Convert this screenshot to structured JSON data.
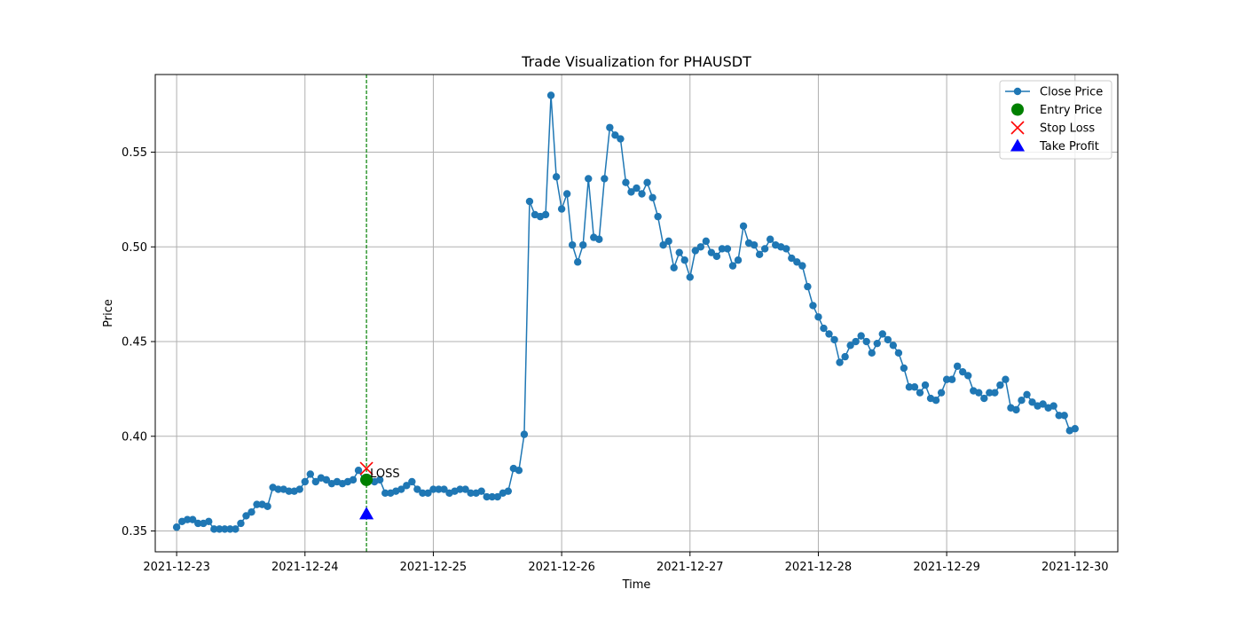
{
  "chart_data": {
    "type": "line",
    "title": "Trade Visualization for PHAUSDT",
    "xlabel": "Time",
    "ylabel": "Price",
    "xlim": [
      "2021-12-22T20:00",
      "2021-12-30T08:00"
    ],
    "ylim": [
      0.339,
      0.591
    ],
    "x_ticks": [
      "2021-12-23",
      "2021-12-24",
      "2021-12-25",
      "2021-12-26",
      "2021-12-27",
      "2021-12-28",
      "2021-12-29",
      "2021-12-30"
    ],
    "y_ticks": [
      0.35,
      0.4,
      0.45,
      0.5,
      0.55
    ],
    "y_tick_labels": [
      "0.35",
      "0.40",
      "0.45",
      "0.50",
      "0.55"
    ],
    "grid": true,
    "legend_position": "top-right",
    "x_start": "2021-12-23T00:00",
    "x_interval_hours": 1,
    "series": [
      {
        "name": "Close Price",
        "color": "#1f77b4",
        "values": [
          0.352,
          0.355,
          0.356,
          0.356,
          0.354,
          0.354,
          0.355,
          0.351,
          0.351,
          0.351,
          0.351,
          0.351,
          0.354,
          0.358,
          0.36,
          0.364,
          0.364,
          0.363,
          0.373,
          0.372,
          0.372,
          0.371,
          0.371,
          0.372,
          0.376,
          0.38,
          0.376,
          0.378,
          0.377,
          0.375,
          0.376,
          0.375,
          0.376,
          0.377,
          0.382,
          0.377,
          0.377,
          0.376,
          0.377,
          0.37,
          0.37,
          0.371,
          0.372,
          0.374,
          0.376,
          0.372,
          0.37,
          0.37,
          0.372,
          0.372,
          0.372,
          0.37,
          0.371,
          0.372,
          0.372,
          0.37,
          0.37,
          0.371,
          0.368,
          0.368,
          0.368,
          0.37,
          0.371,
          0.383,
          0.382,
          0.401,
          0.524,
          0.517,
          0.516,
          0.517,
          0.58,
          0.537,
          0.52,
          0.528,
          0.501,
          0.492,
          0.501,
          0.536,
          0.505,
          0.504,
          0.536,
          0.563,
          0.559,
          0.557,
          0.534,
          0.529,
          0.531,
          0.528,
          0.534,
          0.526,
          0.516,
          0.501,
          0.503,
          0.489,
          0.497,
          0.493,
          0.484,
          0.498,
          0.5,
          0.503,
          0.497,
          0.495,
          0.499,
          0.499,
          0.49,
          0.493,
          0.511,
          0.502,
          0.501,
          0.496,
          0.499,
          0.504,
          0.501,
          0.5,
          0.499,
          0.494,
          0.492,
          0.49,
          0.479,
          0.469,
          0.463,
          0.457,
          0.454,
          0.451,
          0.439,
          0.442,
          0.448,
          0.45,
          0.453,
          0.45,
          0.444,
          0.449,
          0.454,
          0.451,
          0.448,
          0.444,
          0.436,
          0.426,
          0.426,
          0.423,
          0.427,
          0.42,
          0.419,
          0.423,
          0.43,
          0.43,
          0.437,
          0.434,
          0.432,
          0.424,
          0.423,
          0.42,
          0.423,
          0.423,
          0.427,
          0.43,
          0.415,
          0.414,
          0.419,
          0.422,
          0.418,
          0.416,
          0.417,
          0.415,
          0.416,
          0.411,
          0.411,
          0.403,
          0.404
        ]
      },
      {
        "name": "Entry Price",
        "color": "#008000",
        "marker": "circle",
        "points": [
          {
            "x": "2021-12-24T11:30",
            "y": 0.377
          }
        ]
      },
      {
        "name": "Stop Loss",
        "color": "#ff0000",
        "marker": "x",
        "points": [
          {
            "x": "2021-12-24T11:30",
            "y": 0.383
          }
        ]
      },
      {
        "name": "Take Profit",
        "color": "#0000ff",
        "marker": "triangle",
        "points": [
          {
            "x": "2021-12-24T11:30",
            "y": 0.359
          }
        ]
      }
    ],
    "vertical_line": {
      "x": "2021-12-24T11:30",
      "color": "#008000",
      "style": "dashed"
    },
    "annotations": [
      {
        "text": "LOSS",
        "x": "2021-12-24T11:30",
        "y": 0.377
      }
    ]
  }
}
